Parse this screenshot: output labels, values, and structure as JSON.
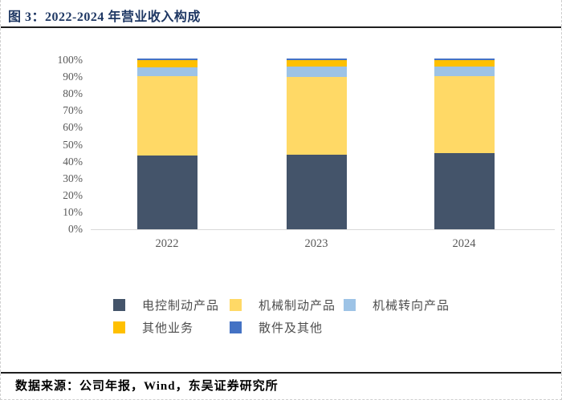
{
  "figure": {
    "title": "图 3：2022-2024 年营业收入构成",
    "source_note": "数据来源：公司年报，Wind，东吴证券研究所"
  },
  "colors": {
    "title_text": "#1F3864",
    "divider": "#1F1F1F",
    "axis_text": "#595959",
    "axis_line": "#D9D9D9",
    "source_text": "#000000"
  },
  "chart_data": {
    "type": "bar",
    "stacked": true,
    "percent": true,
    "title": "2022-2024 年营业收入构成",
    "xlabel": "",
    "ylabel": "",
    "categories": [
      "2022",
      "2023",
      "2024"
    ],
    "series": [
      {
        "name": "电控制动产品",
        "color": "#44546A",
        "values": [
          43.0,
          43.5,
          44.5
        ]
      },
      {
        "name": "机械制动产品",
        "color": "#FFD966",
        "values": [
          46.5,
          45.5,
          45.0
        ]
      },
      {
        "name": "机械转向产品",
        "color": "#9DC3E6",
        "values": [
          5.5,
          6.5,
          6.0
        ]
      },
      {
        "name": "其他业务",
        "color": "#FFC000",
        "values": [
          4.0,
          3.5,
          3.5
        ]
      },
      {
        "name": "散件及其他",
        "color": "#4472C4",
        "values": [
          1.0,
          1.0,
          1.0
        ]
      }
    ],
    "y_ticks": [
      "100%",
      "90%",
      "80%",
      "70%",
      "60%",
      "50%",
      "40%",
      "30%",
      "20%",
      "10%",
      "0%"
    ],
    "ylim": [
      0,
      100
    ],
    "grid": false,
    "legend_position": "bottom"
  }
}
